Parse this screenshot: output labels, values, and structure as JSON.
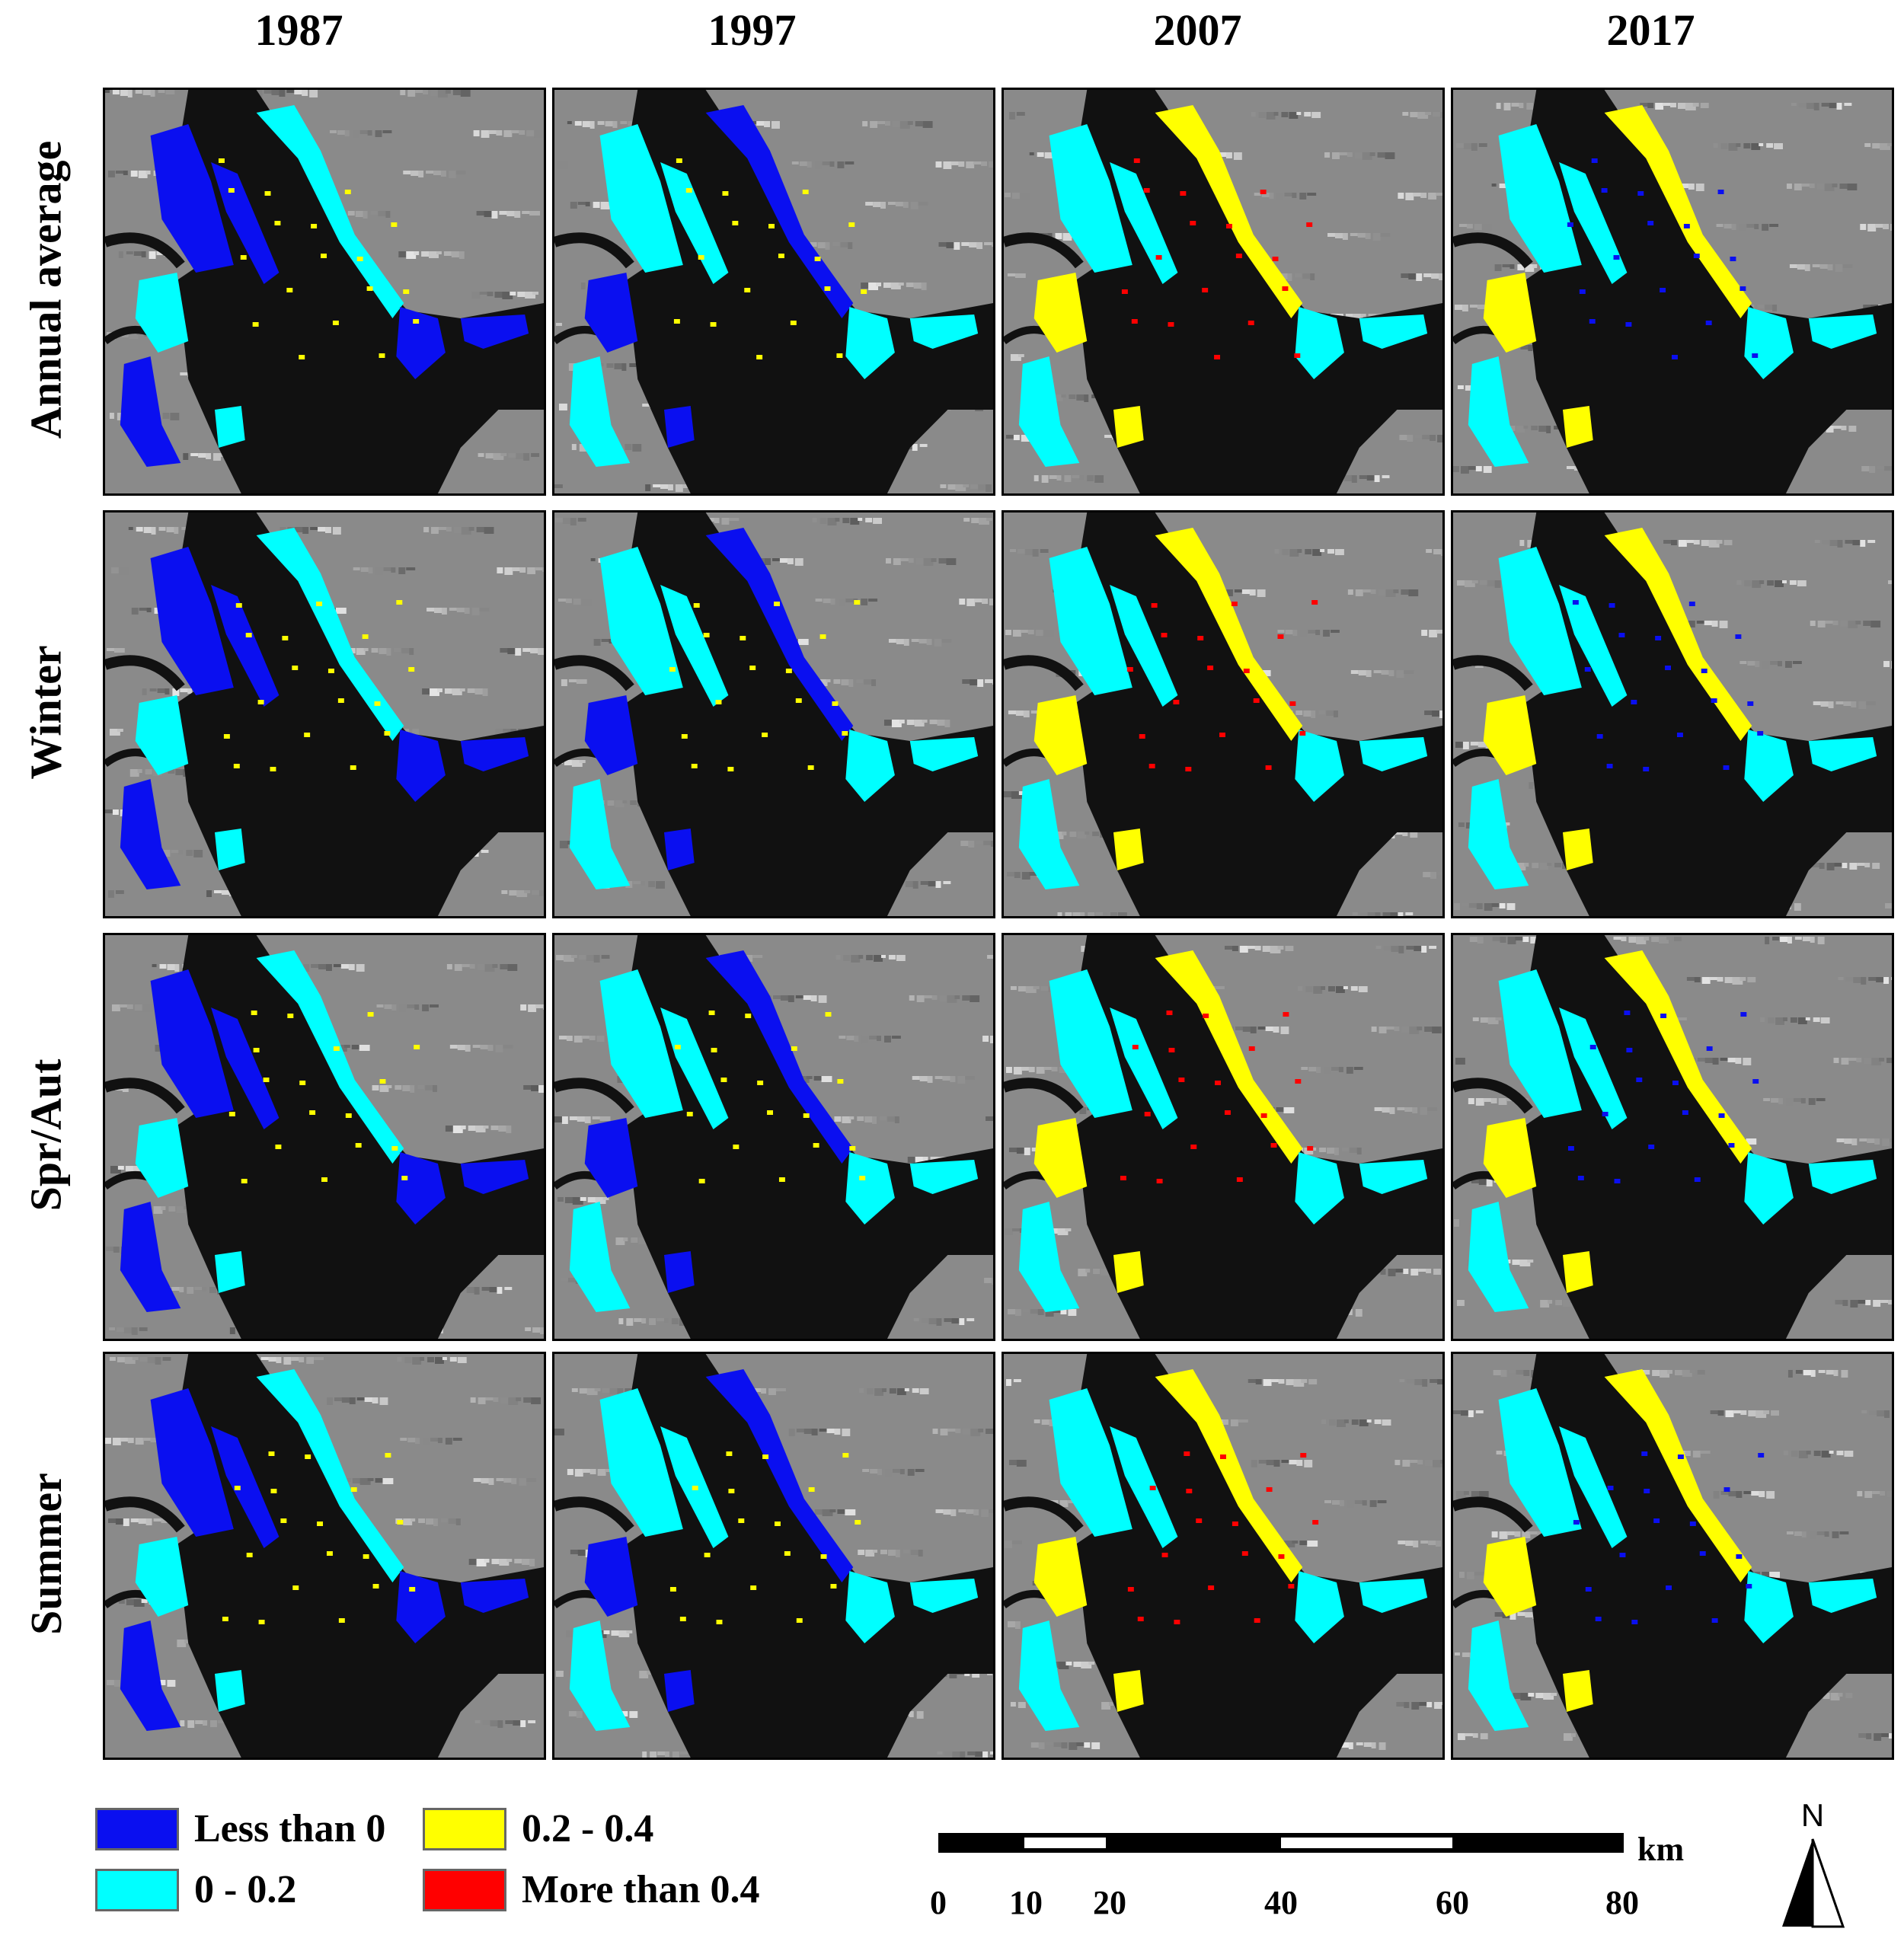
{
  "columns": [
    "1987",
    "1997",
    "2007",
    "2017"
  ],
  "rows": [
    "Annual average",
    "Winter",
    "Spr/Aut",
    "Summer"
  ],
  "legend": {
    "items": [
      {
        "label": "Less than 0",
        "color": "#0a0ff0"
      },
      {
        "label": "0.2 - 0.4",
        "color": "#ffff00"
      },
      {
        "label": "0 - 0.2",
        "color": "#00ffff"
      },
      {
        "label": "More than 0.4",
        "color": "#ff0000"
      }
    ]
  },
  "scale_bar": {
    "unit": "km",
    "labels": [
      "0",
      "10",
      "20",
      "40",
      "60",
      "80"
    ]
  },
  "north_arrow": {
    "letter": "N",
    "icon": "north-arrow-icon"
  },
  "panel_palette": {
    "1987": {
      "dominant": "#0a0ff0",
      "secondary": "#00ffff",
      "accent": "#ffff00"
    },
    "1997": {
      "dominant": "#00ffff",
      "secondary": "#0a0ff0",
      "accent": "#ffff00"
    },
    "2007": {
      "dominant": "#00ffff",
      "secondary": "#ffff00",
      "accent": "#ff0000"
    },
    "2017": {
      "dominant": "#00ffff",
      "secondary": "#ffff00",
      "accent": "#0a0ff0"
    }
  }
}
